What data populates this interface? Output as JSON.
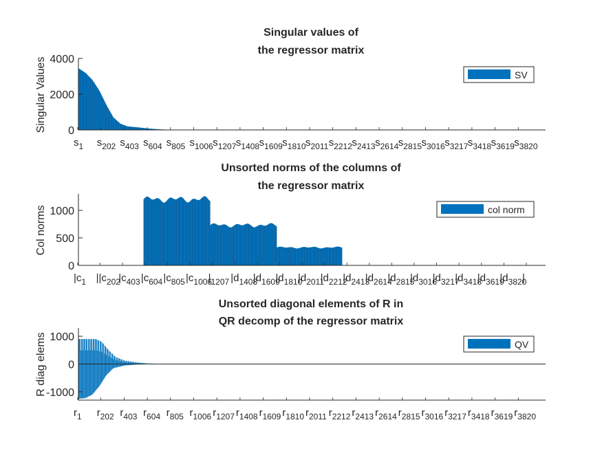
{
  "chart_data": [
    {
      "type": "bar",
      "title": [
        "Singular values of",
        "the regressor matrix"
      ],
      "xlabel": "",
      "ylabel": "Singular Values",
      "ylim": [
        0,
        4000
      ],
      "yticks": [
        0,
        2000,
        4000
      ],
      "legend": {
        "label": "SV",
        "position": "top-right"
      },
      "series_color": "#0072BD",
      "x_count": 4000,
      "xtick_labels": [
        {
          "base": "s",
          "sub": "1"
        },
        {
          "base": "s",
          "sub": "202"
        },
        {
          "base": "s",
          "sub": "403"
        },
        {
          "base": "s",
          "sub": "604"
        },
        {
          "base": "s",
          "sub": "805"
        },
        {
          "base": "s",
          "sub": "1006"
        },
        {
          "base": "s",
          "sub": "1207"
        },
        {
          "base": "s",
          "sub": "1408"
        },
        {
          "base": "s",
          "sub": "1609"
        },
        {
          "base": "s",
          "sub": "1810"
        },
        {
          "base": "s",
          "sub": "2011"
        },
        {
          "base": "s",
          "sub": "2212"
        },
        {
          "base": "s",
          "sub": "2413"
        },
        {
          "base": "s",
          "sub": "2614"
        },
        {
          "base": "s",
          "sub": "2815"
        },
        {
          "base": "s",
          "sub": "3016"
        },
        {
          "base": "s",
          "sub": "3217"
        },
        {
          "base": "s",
          "sub": "3418"
        },
        {
          "base": "s",
          "sub": "3619"
        },
        {
          "base": "s",
          "sub": "3820"
        }
      ],
      "envelope": [
        [
          1,
          3450
        ],
        [
          60,
          3200
        ],
        [
          120,
          2800
        ],
        [
          180,
          2200
        ],
        [
          240,
          1400
        ],
        [
          300,
          700
        ],
        [
          360,
          350
        ],
        [
          420,
          200
        ],
        [
          500,
          150
        ],
        [
          600,
          80
        ],
        [
          700,
          30
        ],
        [
          800,
          10
        ],
        [
          1000,
          0
        ],
        [
          4000,
          0
        ]
      ]
    },
    {
      "type": "bar",
      "title": [
        "Unsorted norms of the columns of",
        "the regressor matrix"
      ],
      "xlabel": "",
      "ylabel": "Col norms",
      "ylim": [
        0,
        1300
      ],
      "yticks": [
        0,
        500,
        1000
      ],
      "legend": {
        "label": "col norm",
        "position": "top-right"
      },
      "series_color": "#0072BD",
      "x_count": 4000,
      "xtick_labels": [
        {
          "base": "|c",
          "sub": "1"
        },
        {
          "base": "||c",
          "sub": "202"
        },
        {
          "base": "|c",
          "sub": "403"
        },
        {
          "base": "|c",
          "sub": "604"
        },
        {
          "base": "|c",
          "sub": "805"
        },
        {
          "base": "|c",
          "sub": "1006"
        },
        {
          "base": "|",
          "sub": "1207"
        },
        {
          "base": "|d",
          "sub": "1408"
        },
        {
          "base": "|d",
          "sub": "1609"
        },
        {
          "base": "|d",
          "sub": "1810"
        },
        {
          "base": "|d",
          "sub": "2011"
        },
        {
          "base": "|d",
          "sub": "2212"
        },
        {
          "base": "|d",
          "sub": "2413"
        },
        {
          "base": "|d",
          "sub": "2614"
        },
        {
          "base": "|d",
          "sub": "2815"
        },
        {
          "base": "|d",
          "sub": "3016"
        },
        {
          "base": "|d",
          "sub": "3217"
        },
        {
          "base": "|d",
          "sub": "3418"
        },
        {
          "base": "|d",
          "sub": "3619"
        },
        {
          "base": "|d",
          "sub": "3820"
        },
        {
          "base": "|",
          "sub": ""
        }
      ],
      "segments": [
        {
          "from": 1,
          "to": 560,
          "level": 0
        },
        {
          "from": 560,
          "to": 1130,
          "level": 1200,
          "amplitude": 60
        },
        {
          "from": 1130,
          "to": 1700,
          "level": 730,
          "amplitude": 40
        },
        {
          "from": 1700,
          "to": 2260,
          "level": 325,
          "amplitude": 18
        },
        {
          "from": 2260,
          "to": 4000,
          "level": 0
        }
      ]
    },
    {
      "type": "bar",
      "title": [
        "Unsorted diagonal elements of R in",
        "QR decomp of the regressor matrix"
      ],
      "xlabel": "",
      "ylabel": "R diag elems",
      "ylim": [
        -1300,
        1300
      ],
      "yticks": [
        -1000,
        0,
        1000
      ],
      "legend": {
        "label": "QV",
        "position": "top-right"
      },
      "series_color": "#0072BD",
      "x_count": 4000,
      "xtick_labels": [
        {
          "base": "r",
          "sub": "1"
        },
        {
          "base": "r",
          "sub": "202"
        },
        {
          "base": "r",
          "sub": "403"
        },
        {
          "base": "r",
          "sub": "604"
        },
        {
          "base": "r",
          "sub": "805"
        },
        {
          "base": "r",
          "sub": "1006"
        },
        {
          "base": "r",
          "sub": "1207"
        },
        {
          "base": "r",
          "sub": "1408"
        },
        {
          "base": "r",
          "sub": "1609"
        },
        {
          "base": "r",
          "sub": "1810"
        },
        {
          "base": "r",
          "sub": "2011"
        },
        {
          "base": "r",
          "sub": "2212"
        },
        {
          "base": "r",
          "sub": "2413"
        },
        {
          "base": "r",
          "sub": "2614"
        },
        {
          "base": "r",
          "sub": "2815"
        },
        {
          "base": "r",
          "sub": "3016"
        },
        {
          "base": "r",
          "sub": "3217"
        },
        {
          "base": "r",
          "sub": "3418"
        },
        {
          "base": "r",
          "sub": "3619"
        },
        {
          "base": "r",
          "sub": "3820"
        }
      ],
      "positive_envelope": [
        [
          1,
          900
        ],
        [
          150,
          900
        ],
        [
          200,
          800
        ],
        [
          260,
          500
        ],
        [
          320,
          250
        ],
        [
          400,
          120
        ],
        [
          500,
          60
        ],
        [
          600,
          20
        ],
        [
          800,
          0
        ],
        [
          4000,
          0
        ]
      ],
      "negative_envelope": [
        [
          1,
          -1250
        ],
        [
          60,
          -1230
        ],
        [
          120,
          -1100
        ],
        [
          180,
          -800
        ],
        [
          240,
          -400
        ],
        [
          300,
          -150
        ],
        [
          400,
          -50
        ],
        [
          500,
          -20
        ],
        [
          700,
          0
        ],
        [
          4000,
          0
        ]
      ]
    }
  ]
}
